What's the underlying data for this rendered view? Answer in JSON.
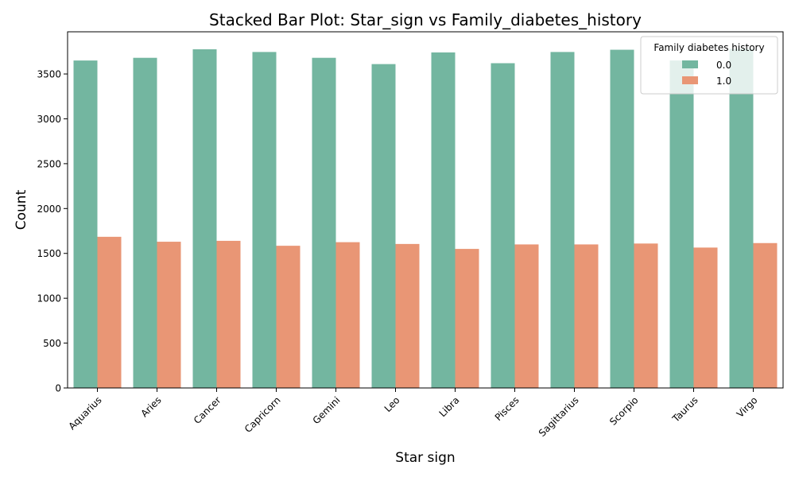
{
  "chart_data": {
    "type": "bar",
    "title": "Stacked Bar Plot: Star_sign vs Family_diabetes_history",
    "xlabel": "Star sign",
    "ylabel": "Count",
    "categories": [
      "Aquarius",
      "Aries",
      "Cancer",
      "Capricorn",
      "Gemini",
      "Leo",
      "Libra",
      "Pisces",
      "Sagittarius",
      "Scorpio",
      "Taurus",
      "Virgo"
    ],
    "series": [
      {
        "name": "0.0",
        "color": "#73b6a0",
        "values": [
          3650,
          3680,
          3775,
          3745,
          3680,
          3610,
          3740,
          3620,
          3745,
          3770,
          3650,
          3780
        ]
      },
      {
        "name": "1.0",
        "color": "#e99675",
        "values": [
          1685,
          1630,
          1640,
          1585,
          1625,
          1605,
          1550,
          1600,
          1600,
          1610,
          1565,
          1615
        ]
      }
    ],
    "ylim": [
      0,
      3970
    ],
    "yticks": [
      0,
      500,
      1000,
      1500,
      2000,
      2500,
      3000,
      3500
    ],
    "legend": {
      "title": "Family diabetes history",
      "position": "top-right"
    },
    "grid": false
  }
}
